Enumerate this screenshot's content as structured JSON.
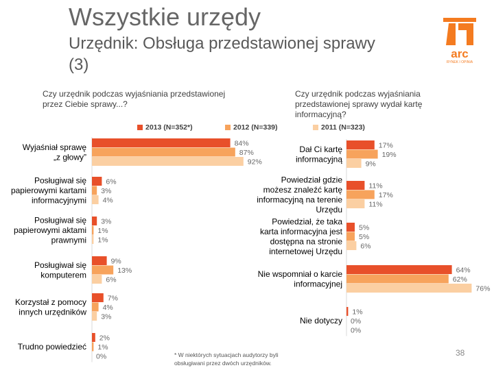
{
  "title": "Wszystkie urzędy",
  "subtitle": "Urzędnik: Obsługa przedstawionej sprawy (3)",
  "logo": {
    "text": "arc",
    "tagline": "RYNEK I OPINIA",
    "color": "#f47b20"
  },
  "footnote": "* W niektórych sytuacjach audytorzy byli obsługiwani przez dwóch urzędników.",
  "page_number": "38",
  "legend": [
    {
      "label": "2013 (N=352*)",
      "color": "#e8502a"
    },
    {
      "label": "2012 (N=339)",
      "color": "#f7a35c"
    },
    {
      "label": "2011 (N=323)",
      "color": "#fbcfa2"
    }
  ],
  "chart_data": [
    {
      "type": "bar",
      "orientation": "horizontal",
      "title": "Czy urzędnik podczas wyjaśniania przedstawionej przez Ciebie sprawy...?",
      "categories": [
        "Wyjaśniał sprawę „z głowy”",
        "Posługiwał się papierowymi kartami informacyjnymi",
        "Posługiwał się papierowymi aktami prawnymi",
        "Posługiwał się komputerem",
        "Korzystał z pomocy innych urzędników",
        "Trudno powiedzieć"
      ],
      "category_lines": [
        [
          "Wyjaśniał sprawę",
          "„z głowy”"
        ],
        [
          "Posługiwał się",
          "papierowymi kartami",
          "informacyjnymi"
        ],
        [
          "Posługiwał się",
          "papierowymi aktami",
          "prawnymi"
        ],
        [
          "Posługiwał się",
          "komputerem"
        ],
        [
          "Korzystał z pomocy",
          "innych urzędników"
        ],
        [
          "Trudno powiedzieć"
        ]
      ],
      "series": [
        {
          "name": "2013 (N=352*)",
          "values": [
            84,
            6,
            3,
            9,
            7,
            2
          ],
          "labels": [
            "84%",
            "6%",
            "3%",
            "9%",
            "7%",
            "2%"
          ]
        },
        {
          "name": "2012 (N=339)",
          "values": [
            87,
            3,
            1,
            13,
            4,
            1
          ],
          "labels": [
            "87%",
            "3%",
            "1%",
            "13%",
            "4%",
            "1%"
          ]
        },
        {
          "name": "2011 (N=323)",
          "values": [
            92,
            4,
            1,
            6,
            3,
            0
          ],
          "labels": [
            "92%",
            "4%",
            "1%",
            "6%",
            "3%",
            "0%"
          ]
        }
      ],
      "unit": "%"
    },
    {
      "type": "bar",
      "orientation": "horizontal",
      "title": "Czy urzędnik podczas wyjaśniania przedstawionej sprawy wydał kartę informacyjną?",
      "categories": [
        "Dał Ci kartę informacyjną",
        "Powiedział gdzie możesz znaleźć kartę informacyjną na terenie Urzędu",
        "Powiedział, że taka karta informacyjna jest dostępna na stronie internetowej Urzędu",
        "Nie wspomniał o karcie informacyjnej",
        "Nie dotyczy"
      ],
      "category_lines": [
        [
          "Dał Ci kartę",
          "informacyjną"
        ],
        [
          "Powiedział gdzie",
          "możesz znaleźć kartę",
          "informacyjną na terenie",
          "Urzędu"
        ],
        [
          "Powiedział, że taka",
          "karta informacyjna jest",
          "dostępna na stronie",
          "internetowej Urzędu"
        ],
        [
          "Nie wspomniał o karcie",
          "informacyjnej"
        ],
        [
          "Nie dotyczy"
        ]
      ],
      "series": [
        {
          "name": "2013 (N=352*)",
          "values": [
            17,
            11,
            5,
            64,
            1
          ],
          "labels": [
            "17%",
            "11%",
            "5%",
            "64%",
            "1%"
          ]
        },
        {
          "name": "2012 (N=339)",
          "values": [
            19,
            17,
            5,
            62,
            0
          ],
          "labels": [
            "19%",
            "17%",
            "5%",
            "62%",
            "0%"
          ]
        },
        {
          "name": "2011 (N=323)",
          "values": [
            9,
            11,
            6,
            76,
            0
          ],
          "labels": [
            "9%",
            "11%",
            "6%",
            "76%",
            "0%"
          ]
        }
      ],
      "unit": "%"
    }
  ]
}
